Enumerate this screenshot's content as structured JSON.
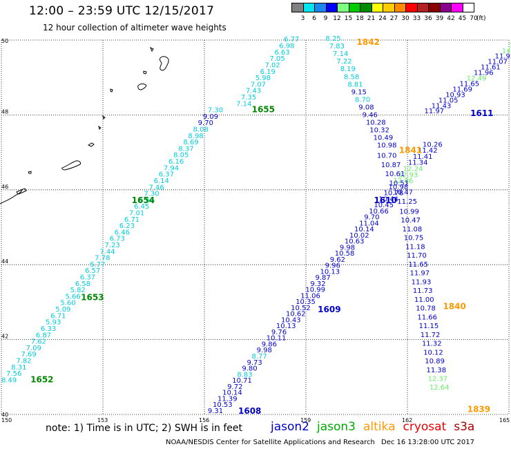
{
  "header": {
    "title": "12:00 – 23:59 UTC 12/15/2017",
    "subtitle": "12 hour collection of altimeter wave heights"
  },
  "color_scale": {
    "unit": "(ft)",
    "bins": [
      {
        "label": "3",
        "color": "#808080"
      },
      {
        "label": "6",
        "color": "#00e5ee"
      },
      {
        "label": "9",
        "color": "#1c86ee"
      },
      {
        "label": "12",
        "color": "#0000ff"
      },
      {
        "label": "15",
        "color": "#7fff7f"
      },
      {
        "label": "18",
        "color": "#00cd00"
      },
      {
        "label": "21",
        "color": "#008b00"
      },
      {
        "label": "24",
        "color": "#ffff00"
      },
      {
        "label": "27",
        "color": "#ffcc00"
      },
      {
        "label": "30",
        "color": "#ff8c00"
      },
      {
        "label": "33",
        "color": "#ff0000"
      },
      {
        "label": "36",
        "color": "#b22222"
      },
      {
        "label": "39",
        "color": "#8b0000"
      },
      {
        "label": "42",
        "color": "#8b008b"
      },
      {
        "label": "45",
        "color": "#ff00ff"
      },
      {
        "label": "70",
        "color": "#ffffff"
      }
    ]
  },
  "axes": {
    "lon_ticks": [
      "150",
      "153",
      "156",
      "159",
      "162",
      "165"
    ],
    "lat_ticks": [
      "50",
      "48",
      "46",
      "44",
      "42",
      "40"
    ]
  },
  "track_colors": {
    "cyan": "#00ccdd",
    "blue": "#0000cc",
    "lightgreen": "#66ee66",
    "green": "#008800",
    "orange": "#ff9900"
  },
  "tracks": [
    {
      "id": "t1652",
      "color": "cyan",
      "time_label": "1652",
      "time_color": "green",
      "time_pos": {
        "lon": 150.86,
        "lat": 40.86
      },
      "start": {
        "lon": 150.0,
        "lat": 40.86
      },
      "end": {
        "lon": 156.1,
        "lat": 48.07
      },
      "values": [
        "8.49",
        "7.56",
        "8.31",
        "7.82",
        "7.69",
        "7.09",
        "7.62",
        "6.87",
        "6.33",
        "5.93",
        "6.71",
        "5.09",
        "5.60",
        "5.66",
        "5.82",
        "6.58",
        "6.37",
        "6.57",
        "6.77",
        "7.78",
        "7.44",
        "7.23",
        "6.73",
        "6.46",
        "6.23",
        "6.71",
        "7.01",
        "6.45",
        "6.66",
        "7.30",
        "7.46",
        "6.14",
        "6.37",
        "7.94",
        "6.16",
        "8.05",
        "8.37",
        "8.69",
        "8.98",
        "8.08",
        "9.70",
        "9.09",
        "7.30"
      ]
    },
    {
      "id": "t1655",
      "color": "cyan",
      "start": {
        "lon": 156.94,
        "lat": 48.24
      },
      "end": {
        "lon": 158.35,
        "lat": 49.96
      },
      "values": [
        "7.14",
        "7.35",
        "7.43",
        "7.07",
        "5.98",
        "6.19",
        "7.02",
        "7.05",
        "6.63",
        "6.98",
        "6.77"
      ]
    },
    {
      "id": "t1609",
      "color": "blue",
      "time_label": "1609",
      "time_color": "blue",
      "time_pos": {
        "lon": 159.35,
        "lat": 42.73
      },
      "start": {
        "lon": 156.1,
        "lat": 40.04
      },
      "end": {
        "lon": 162.45,
        "lat": 47.15
      },
      "values": [
        "9.31",
        "10.53",
        "11.39",
        "10.14",
        "9.72",
        "10.71",
        "8.83",
        "9.80",
        "9.73",
        "8.77",
        "9.98",
        "9.86",
        "10.11",
        "9.76",
        "10.13",
        "10.43",
        "10.62",
        "10.52",
        "10.35",
        "11.06",
        "10.99",
        "9.32",
        "9.87",
        "10.13",
        "9.96",
        "9.62",
        "10.58",
        "9.98",
        "10.63",
        "10.02",
        "10.14",
        "11.04",
        "9.70",
        "10.66",
        "10.45",
        "10.44",
        "10.78",
        "10.98",
        "12.86",
        "12.93",
        "12.24",
        "11.34",
        "11.41",
        "11.42",
        "10.26"
      ]
    },
    {
      "id": "t1611",
      "color": "blue",
      "time_label": "1611",
      "time_color": "blue",
      "time_pos": {
        "lon": 163.86,
        "lat": 47.97
      },
      "start": {
        "lon": 162.5,
        "lat": 48.04
      },
      "end": {
        "lon": 165.0,
        "lat": 49.8
      },
      "values": [
        "11.97",
        "11.43",
        "11.05",
        "10.93",
        "11.69",
        "11.65",
        "12.49",
        "11.96",
        "11.61",
        "11.07",
        "11.92",
        "14.65",
        "13.92"
      ]
    },
    {
      "id": "t1842",
      "color": "blue",
      "time_label": "1842",
      "time_color": "orange",
      "time_pos": {
        "lon": 160.5,
        "lat": 49.87
      },
      "start": {
        "lon": 159.58,
        "lat": 49.98
      },
      "end": {
        "lon": 161.1,
        "lat": 47.13
      },
      "values": [
        "8.25",
        "7.83",
        "7.14",
        "7.22",
        "8.19",
        "8.58",
        "8.81",
        "9.15",
        "8.70",
        "9.08",
        "9.46",
        "10.28",
        "10.32",
        "10.49",
        "10.98"
      ]
    },
    {
      "id": "t1841",
      "color": "blue",
      "time_label": "1841",
      "time_color": "orange",
      "time_pos": {
        "lon": 161.75,
        "lat": 46.98
      },
      "start": {
        "lon": 161.1,
        "lat": 46.85
      },
      "end": {
        "lon": 161.7,
        "lat": 45.63
      },
      "values": [
        "10.70",
        "10.87",
        "10.61",
        "10.51",
        "10.47",
        "11.25"
      ]
    },
    {
      "id": "t1840",
      "color": "blue",
      "time_label": "1840",
      "time_color": "orange",
      "time_pos": {
        "lon": 163.05,
        "lat": 42.81
      },
      "start": {
        "lon": 161.76,
        "lat": 45.36
      },
      "end": {
        "lon": 162.65,
        "lat": 40.66
      },
      "values": [
        "10.99",
        "10.47",
        "11.08",
        "10.75",
        "11.18",
        "11.70",
        "11.65",
        "11.97",
        "11.93",
        "11.73",
        "11.00",
        "10.78",
        "11.66",
        "11.15",
        "11.72",
        "11.32",
        "10.12",
        "10.89",
        "11.38",
        "12.37",
        "12.64"
      ]
    },
    {
      "id": "t1839",
      "color": "orange",
      "time_label": "1839",
      "time_color": "orange",
      "time_pos": {
        "lon": 163.77,
        "lat": 40.06
      },
      "start": {
        "lon": 163.2,
        "lat": 40.06
      },
      "end": {
        "lon": 163.2,
        "lat": 40.06
      },
      "values": []
    },
    {
      "id": "t1610",
      "color": "blue",
      "time_label": "1610",
      "time_color": "blue",
      "time_pos": {
        "lon": 161.01,
        "lat": 45.65
      },
      "start": {
        "lon": 161.01,
        "lat": 45.65
      },
      "end": {
        "lon": 161.01,
        "lat": 45.65
      },
      "values": []
    },
    {
      "id": "t1608",
      "color": "blue",
      "time_label": "1608",
      "time_color": "blue",
      "time_pos": {
        "lon": 157.0,
        "lat": 40.02
      },
      "start": {
        "lon": 157.0,
        "lat": 40.02
      },
      "end": {
        "lon": 157.0,
        "lat": 40.02
      },
      "values": []
    },
    {
      "id": "t1655lbl",
      "color": "cyan",
      "time_label": "1655",
      "time_color": "green",
      "time_pos": {
        "lon": 157.4,
        "lat": 48.07
      },
      "start": {
        "lon": 157.4,
        "lat": 48.07
      },
      "end": {
        "lon": 157.4,
        "lat": 48.07
      },
      "values": []
    },
    {
      "id": "t1654lbl",
      "color": "cyan",
      "time_label": "1654",
      "time_color": "green",
      "time_pos": {
        "lon": 153.85,
        "lat": 45.65
      },
      "start": {
        "lon": 153.85,
        "lat": 45.65
      },
      "end": {
        "lon": 153.85,
        "lat": 45.65
      },
      "values": []
    },
    {
      "id": "t1653lbl",
      "color": "cyan",
      "time_label": "1653",
      "time_color": "green",
      "time_pos": {
        "lon": 152.35,
        "lat": 43.05
      },
      "start": {
        "lon": 152.35,
        "lat": 43.05
      },
      "end": {
        "lon": 152.35,
        "lat": 43.05
      },
      "values": []
    }
  ],
  "footer": {
    "note": "note: 1) Time is in UTC; 2) SWH is in feet",
    "satellites": [
      {
        "name": "jason2",
        "color": "#0000cc"
      },
      {
        "name": "jason3",
        "color": "#00aa00"
      },
      {
        "name": "altika",
        "color": "#ff9900"
      },
      {
        "name": "cryosat",
        "color": "#ee0000"
      },
      {
        "name": "s3a",
        "color": "#aa0000"
      }
    ],
    "credit": "NOAA/NESDIS Center for Satellite Applications and Research",
    "timestamp": "Dec 16 13:28:00 UTC 2017"
  }
}
